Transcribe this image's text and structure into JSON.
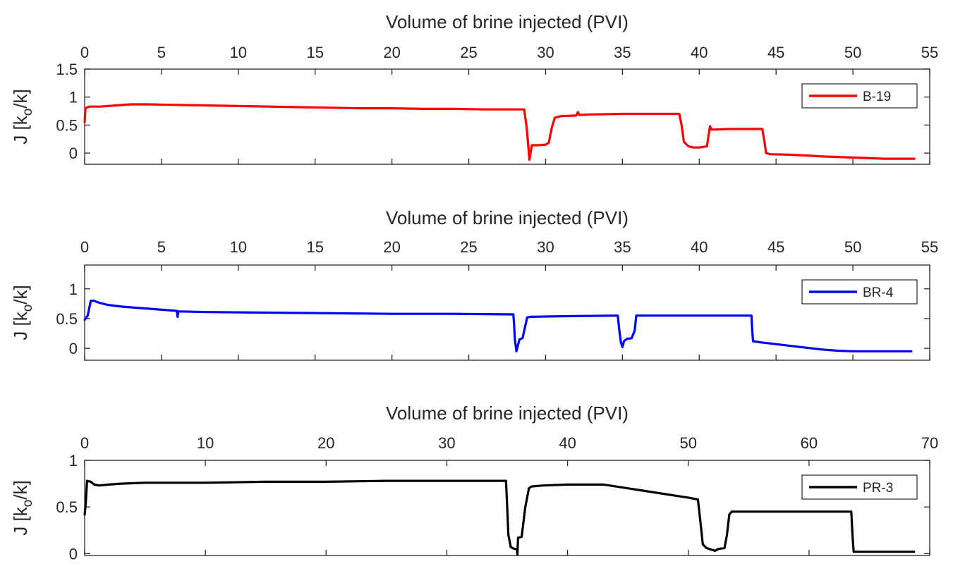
{
  "chart_data": [
    {
      "type": "line",
      "xlabel": "Volume of brine injected (PVI)",
      "ylabel_main": "J [k",
      "ylabel_sub": "o",
      "ylabel_tail": "/k]",
      "xlim": [
        0,
        55
      ],
      "ylim": [
        -0.2,
        1.5
      ],
      "xticks": [
        0,
        5,
        10,
        15,
        20,
        25,
        30,
        35,
        40,
        45,
        50,
        55
      ],
      "yticks": [
        0,
        0.5,
        1,
        1.5
      ],
      "ytick_labels": [
        "0",
        "0.5",
        "1",
        "1.5"
      ],
      "legend": "top-right",
      "series": [
        {
          "name": "B-19",
          "color": "#ff0000",
          "x": [
            0,
            0.05,
            0.3,
            1,
            2,
            3,
            4,
            6,
            8,
            10,
            12,
            14,
            16,
            18,
            20,
            22,
            24,
            26,
            28.2,
            28.6,
            28.75,
            28.85,
            28.95,
            29.1,
            29.5,
            30,
            30.2,
            30.4,
            30.6,
            31,
            32,
            32.1,
            32.2,
            33,
            35,
            37,
            38.7,
            38.85,
            39,
            39.3,
            39.6,
            40,
            40.5,
            40.6,
            40.7,
            40.8,
            41,
            42,
            43,
            44.1,
            44.25,
            44.35,
            44.6,
            46,
            48,
            50,
            52,
            54
          ],
          "y": [
            0.55,
            0.8,
            0.83,
            0.83,
            0.85,
            0.87,
            0.87,
            0.86,
            0.85,
            0.84,
            0.83,
            0.82,
            0.81,
            0.8,
            0.8,
            0.79,
            0.79,
            0.78,
            0.78,
            0.78,
            0.5,
            0.2,
            -0.12,
            0.14,
            0.14,
            0.15,
            0.18,
            0.45,
            0.63,
            0.66,
            0.67,
            0.73,
            0.68,
            0.69,
            0.7,
            0.7,
            0.7,
            0.5,
            0.2,
            0.12,
            0.1,
            0.1,
            0.12,
            0.3,
            0.48,
            0.42,
            0.42,
            0.43,
            0.43,
            0.43,
            0.2,
            0.0,
            -0.02,
            -0.03,
            -0.06,
            -0.08,
            -0.1,
            -0.1
          ]
        }
      ]
    },
    {
      "type": "line",
      "xlabel": "Volume of brine injected (PVI)",
      "ylabel_main": "J [k",
      "ylabel_sub": "o",
      "ylabel_tail": "/k]",
      "xlim": [
        0,
        55
      ],
      "ylim": [
        -0.2,
        1.4
      ],
      "xticks": [
        0,
        5,
        10,
        15,
        20,
        25,
        30,
        35,
        40,
        45,
        50,
        55
      ],
      "yticks": [
        0,
        0.5,
        1
      ],
      "ytick_labels": [
        "0",
        "0.5",
        "1"
      ],
      "legend": "top-right",
      "series": [
        {
          "name": "BR-4",
          "color": "#0000ff",
          "x": [
            0,
            0.2,
            0.4,
            0.6,
            0.9,
            1.5,
            2.5,
            4,
            6,
            6.05,
            6.1,
            6.15,
            8,
            12,
            16,
            20,
            24,
            27.9,
            27.95,
            28.0,
            28.1,
            28.3,
            28.5,
            28.7,
            28.8,
            29.0,
            31,
            34.7,
            34.8,
            34.9,
            35.0,
            35.1,
            35.3,
            35.6,
            35.8,
            35.9,
            36.0,
            38,
            40,
            42,
            43.4,
            43.45,
            43.5,
            44,
            45,
            46,
            47,
            48,
            49,
            50,
            51,
            52,
            53,
            53.8
          ],
          "y": [
            0.48,
            0.55,
            0.8,
            0.8,
            0.77,
            0.73,
            0.7,
            0.67,
            0.63,
            0.53,
            0.62,
            0.62,
            0.61,
            0.6,
            0.59,
            0.58,
            0.58,
            0.57,
            0.4,
            0.15,
            -0.05,
            0.15,
            0.17,
            0.4,
            0.52,
            0.53,
            0.54,
            0.55,
            0.3,
            0.1,
            0.02,
            0.12,
            0.16,
            0.17,
            0.3,
            0.55,
            0.55,
            0.55,
            0.55,
            0.55,
            0.55,
            0.3,
            0.12,
            0.1,
            0.07,
            0.04,
            0.01,
            -0.02,
            -0.04,
            -0.05,
            -0.05,
            -0.05,
            -0.05,
            -0.05
          ]
        }
      ]
    },
    {
      "type": "line",
      "xlabel": "Volume of brine injected (PVI)",
      "ylabel_main": "J [k",
      "ylabel_sub": "o",
      "ylabel_tail": "/k]",
      "xlim": [
        0,
        70
      ],
      "ylim": [
        -0.02,
        1.0
      ],
      "xticks": [
        0,
        10,
        20,
        30,
        40,
        50,
        60,
        70
      ],
      "yticks": [
        0,
        0.5,
        1
      ],
      "ytick_labels": [
        "0",
        "0.5",
        "1"
      ],
      "legend": "top-right",
      "series": [
        {
          "name": "PR-3",
          "color": "#000000",
          "x": [
            0,
            0.1,
            0.2,
            0.5,
            0.8,
            1.2,
            2,
            3,
            5,
            10,
            15,
            20,
            25,
            30,
            34.9,
            35,
            35.1,
            35.3,
            35.6,
            35.8,
            35.85,
            35.9,
            36.2,
            36.5,
            36.8,
            37,
            38,
            40,
            42,
            43,
            44,
            45,
            47,
            49,
            50,
            50.8,
            51,
            51.2,
            51.5,
            52,
            52.2,
            52.5,
            53,
            53.2,
            53.4,
            53.6,
            54,
            56,
            58,
            60,
            62,
            63.5,
            63.6,
            63.7,
            64,
            66,
            68,
            68.7
          ],
          "y": [
            0.42,
            0.55,
            0.78,
            0.77,
            0.74,
            0.73,
            0.74,
            0.75,
            0.76,
            0.76,
            0.77,
            0.77,
            0.78,
            0.78,
            0.78,
            0.5,
            0.2,
            0.07,
            0.05,
            0.05,
            -0.01,
            0.17,
            0.18,
            0.5,
            0.7,
            0.72,
            0.73,
            0.74,
            0.74,
            0.74,
            0.72,
            0.7,
            0.66,
            0.62,
            0.6,
            0.58,
            0.35,
            0.1,
            0.06,
            0.04,
            0.03,
            0.05,
            0.06,
            0.2,
            0.42,
            0.45,
            0.45,
            0.45,
            0.45,
            0.45,
            0.45,
            0.45,
            0.2,
            0.02,
            0.02,
            0.02,
            0.02,
            0.02
          ]
        }
      ]
    }
  ]
}
